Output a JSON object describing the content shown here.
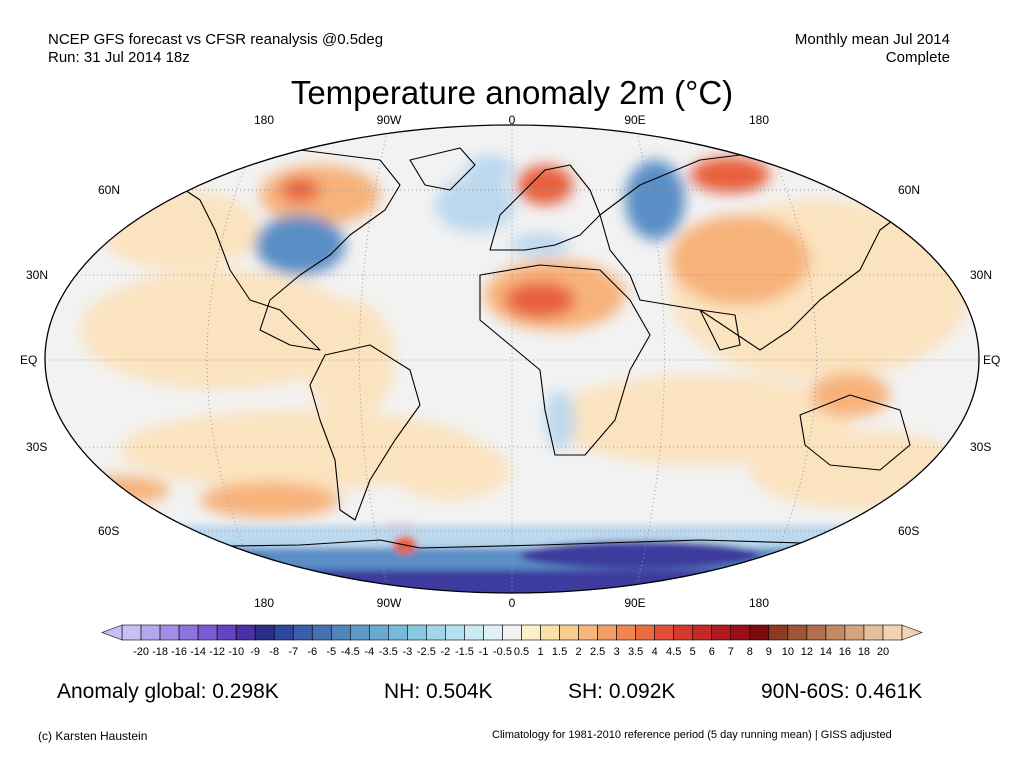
{
  "header": {
    "left_line1": "NCEP GFS forecast vs CFSR reanalysis @0.5deg",
    "left_line2": "Run: 31 Jul 2014 18z",
    "right_line1": "Monthly mean Jul 2014",
    "right_line2": "Complete"
  },
  "title": "Temperature anomaly 2m (°C)",
  "map": {
    "lon_labels": [
      "180",
      "90W",
      "0",
      "90E",
      "180"
    ],
    "lat_labels_left": [
      "60N",
      "30N",
      "EQ",
      "30S",
      "60S"
    ],
    "lat_labels_right": [
      "60N",
      "30N",
      "EQ",
      "30S",
      "60S"
    ],
    "colors": {
      "ocean_neutral": "#f2f2f2",
      "warm_light": "#fbe3c0",
      "warm_mid": "#f7b27a",
      "warm_strong": "#e8603c",
      "cold_light": "#bcd8ee",
      "cold_mid": "#5a8ec6",
      "cold_strong": "#3d3a9e",
      "coast": "#000000"
    }
  },
  "colorbar": {
    "labels": [
      "-20",
      "-18",
      "-16",
      "-14",
      "-12",
      "-10",
      "-9",
      "-8",
      "-7",
      "-6",
      "-5",
      "-4.5",
      "-4",
      "-3.5",
      "-3",
      "-2.5",
      "-2",
      "-1.5",
      "-1",
      "-0.5",
      "0.5",
      "1",
      "1.5",
      "2",
      "2.5",
      "3",
      "3.5",
      "4",
      "4.5",
      "5",
      "6",
      "7",
      "8",
      "9",
      "10",
      "12",
      "14",
      "16",
      "18",
      "20"
    ],
    "colors": [
      "#c8c0f4",
      "#b5a7ee",
      "#a18ee6",
      "#8d74dd",
      "#7a5bd3",
      "#6642c6",
      "#4b2fa5",
      "#2a2f8a",
      "#2c479c",
      "#3a5ea9",
      "#4671b3",
      "#5185bd",
      "#5d99c7",
      "#6aa9d0",
      "#78bad9",
      "#8ac8e2",
      "#a0d5ea",
      "#b6e1f0",
      "#cceaf5",
      "#e0f2f8",
      "#f2f2f2",
      "#fdf0c8",
      "#fbe1a8",
      "#f9cd8c",
      "#f7b77a",
      "#f4a064",
      "#f08752",
      "#ea6b42",
      "#e15036",
      "#d6392f",
      "#c52829",
      "#b01b22",
      "#991018",
      "#7c0a0e",
      "#8c3b22",
      "#9e5636",
      "#b0704b",
      "#c28b63",
      "#d3a57d",
      "#e6c09b",
      "#f0d2b5"
    ]
  },
  "stats": {
    "global": "Anomaly global: 0.298K",
    "nh": "NH: 0.504K",
    "sh": "SH: 0.092K",
    "arctic": "90N-60S: 0.461K"
  },
  "footer": {
    "credit": "(c) Karsten Haustein",
    "note": "Climatology for 1981-2010 reference period (5 day running mean) | GISS adjusted"
  }
}
